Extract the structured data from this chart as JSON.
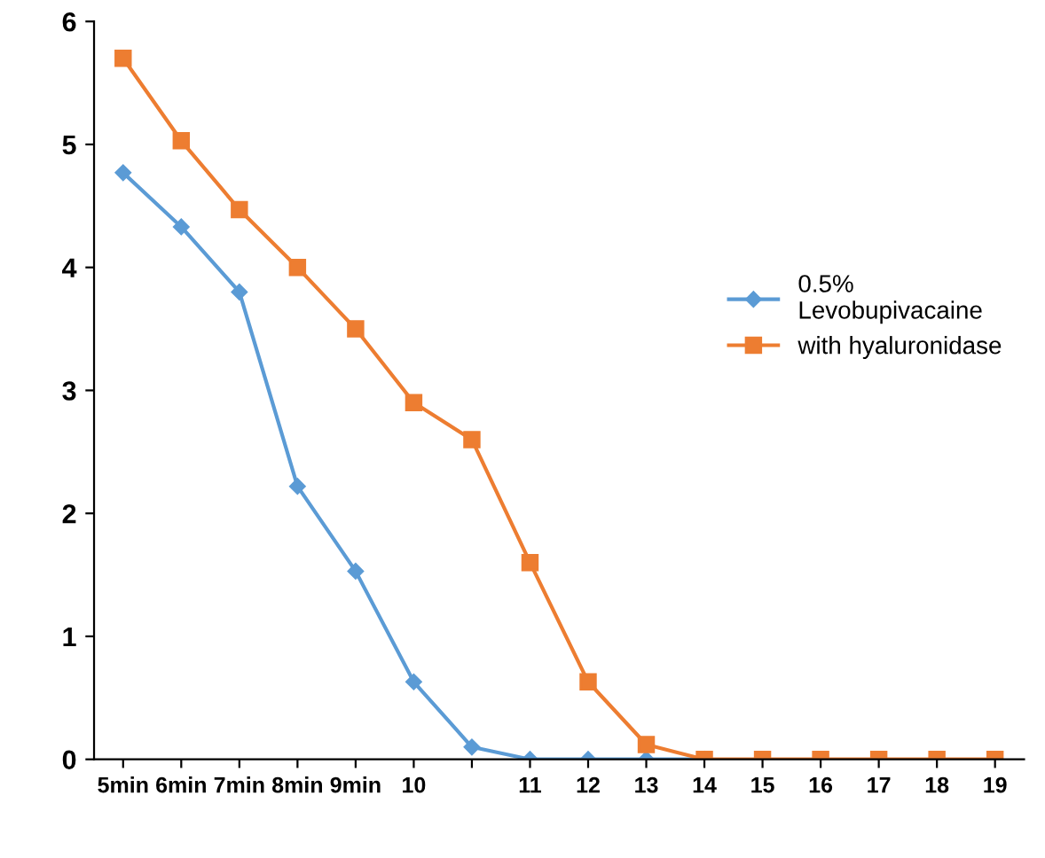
{
  "chart_data": {
    "type": "line",
    "categories": [
      "5min",
      "6min",
      "7min",
      "8min",
      "9min",
      "10",
      null,
      "11",
      "12",
      "13",
      "14",
      "15",
      "16",
      "17",
      "18",
      "19"
    ],
    "series": [
      {
        "name": "0.5%\nLevobupivacaine",
        "color": "#5b9bd5",
        "marker": "diamond",
        "values": [
          4.77,
          4.33,
          3.8,
          2.22,
          1.53,
          0.63,
          0.1,
          0,
          0,
          0,
          0,
          null,
          null,
          null,
          null,
          null
        ]
      },
      {
        "name": "with hyaluronidase",
        "color": "#ed7d31",
        "marker": "square",
        "values": [
          5.7,
          5.03,
          4.47,
          4.0,
          3.5,
          2.9,
          2.6,
          1.6,
          0.63,
          0.12,
          0,
          0,
          0,
          0,
          0,
          0
        ]
      }
    ],
    "ylim": [
      0,
      6
    ],
    "yticks": [
      0,
      1,
      2,
      3,
      4,
      5,
      6
    ],
    "grid": false,
    "legend": "right"
  }
}
